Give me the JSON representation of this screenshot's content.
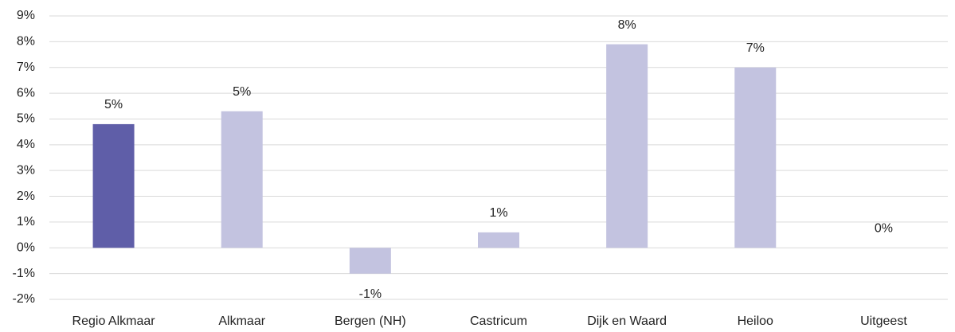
{
  "chart_data": {
    "type": "bar",
    "categories": [
      "Regio Alkmaar",
      "Alkmaar",
      "Bergen (NH)",
      "Castricum",
      "Dijk en Waard",
      "Heiloo",
      "Uitgeest"
    ],
    "values": [
      4.8,
      5.3,
      -1.0,
      0.6,
      7.9,
      7.0,
      0
    ],
    "value_labels": [
      "5%",
      "5%",
      "-1%",
      "1%",
      "8%",
      "7%",
      "0%"
    ],
    "colors": [
      "#5f5ea8",
      "#c3c3e0",
      "#c3c3e0",
      "#c3c3e0",
      "#c3c3e0",
      "#c3c3e0",
      "#c3c3e0"
    ],
    "ylim": [
      -2,
      9
    ],
    "yticks": [
      {
        "value": -2,
        "label": "-2%"
      },
      {
        "value": -1,
        "label": "-1%"
      },
      {
        "value": 0,
        "label": "0%"
      },
      {
        "value": 1,
        "label": "1%"
      },
      {
        "value": 2,
        "label": "2%"
      },
      {
        "value": 3,
        "label": "3%"
      },
      {
        "value": 4,
        "label": "4%"
      },
      {
        "value": 5,
        "label": "5%"
      },
      {
        "value": 6,
        "label": "6%"
      },
      {
        "value": 7,
        "label": "7%"
      },
      {
        "value": 8,
        "label": "8%"
      },
      {
        "value": 9,
        "label": "9%"
      }
    ],
    "grid": true
  }
}
